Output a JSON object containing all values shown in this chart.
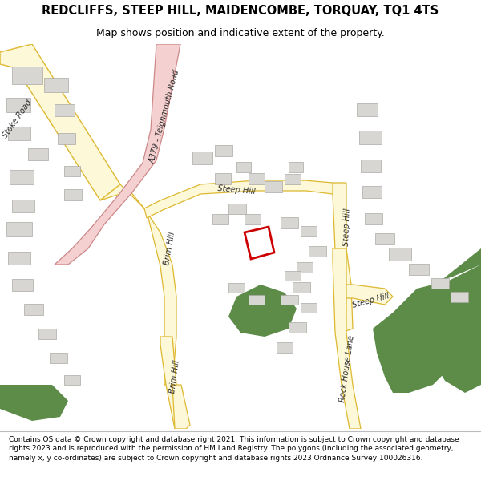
{
  "title": "REDCLIFFS, STEEP HILL, MAIDENCOMBE, TORQUAY, TQ1 4TS",
  "subtitle": "Map shows position and indicative extent of the property.",
  "footer": "Contains OS data © Crown copyright and database right 2021. This information is subject to Crown copyright and database rights 2023 and is reproduced with the permission of HM Land Registry. The polygons (including the associated geometry, namely x, y co-ordinates) are subject to Crown copyright and database rights 2023 Ordnance Survey 100026316.",
  "bg_color": "#ffffff",
  "map_bg": "#f8f6f0",
  "road_fill": "#fdf8d8",
  "road_edge": "#ddb830",
  "road_pink_fill": "#f5d0d0",
  "road_pink_edge": "#cc8888",
  "green_fill": "#5c8c48",
  "building_fill": "#d8d6d2",
  "building_edge": "#aaa8a4",
  "plot_edge": "#cc0000",
  "plot_fill": "#ffffff",
  "title_fontsize": 10.5,
  "subtitle_fontsize": 9,
  "footer_fontsize": 6.5
}
